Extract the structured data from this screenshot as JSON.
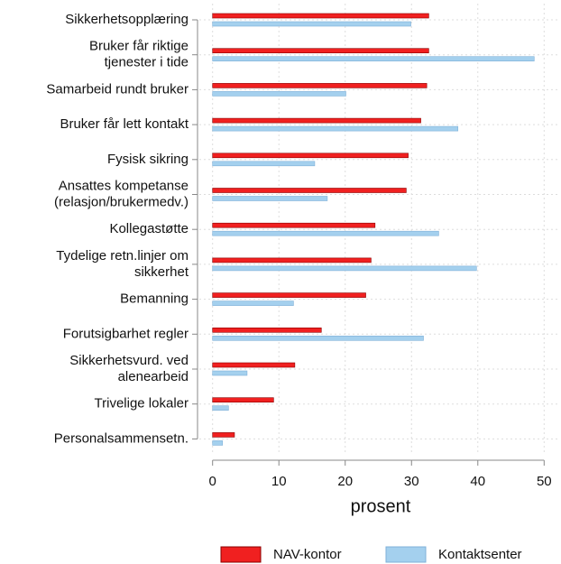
{
  "chart_data": {
    "type": "bar",
    "orientation": "horizontal",
    "categories": [
      "Sikkerhetsopplæring",
      "Bruker får riktige\ntjenester i tide",
      "Samarbeid rundt bruker",
      "Bruker får lett kontakt",
      "Fysisk sikring",
      "Ansattes kompetanse\n(relasjon/brukermedv.)",
      "Kollegastøtte",
      "Tydelige retn.linjer om\nsikkerhet",
      "Bemanning",
      "Forutsigbarhet regler",
      "Sikkerhetsvurd. ved\nalenearbeid",
      "Trivelige lokaler",
      "Personalsammensetn."
    ],
    "series": [
      {
        "name": "NAV-kontor",
        "color": "#f02020",
        "values": [
          32.6,
          32.6,
          32.3,
          31.4,
          29.5,
          29.2,
          24.5,
          23.9,
          23.1,
          16.4,
          12.4,
          9.2,
          3.3
        ]
      },
      {
        "name": "Kontaktsenter",
        "color": "#a4d0ee",
        "values": [
          29.9,
          48.5,
          20.1,
          37.0,
          15.4,
          17.3,
          34.1,
          39.8,
          12.2,
          31.8,
          5.2,
          2.4,
          1.5
        ]
      }
    ],
    "xlabel": "prosent",
    "xlim": [
      -2,
      52
    ],
    "xticks": [
      0,
      10,
      20,
      30,
      40,
      50
    ],
    "grid": true,
    "legend": "bottom"
  }
}
